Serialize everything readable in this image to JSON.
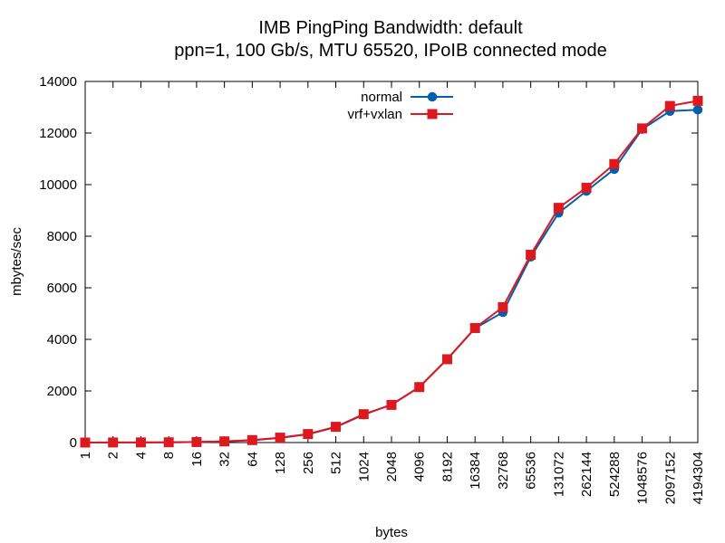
{
  "chart_data": {
    "type": "line",
    "title": "IMB PingPing Bandwidth: default",
    "subtitle": "ppn=1, 100 Gb/s, MTU 65520, IPoIB connected mode",
    "xlabel": "bytes",
    "ylabel": "mbytes/sec",
    "ylim": [
      0,
      14000
    ],
    "yticks": [
      0,
      2000,
      4000,
      6000,
      8000,
      10000,
      12000,
      14000
    ],
    "grid": false,
    "legend_position": "top-center",
    "categories": [
      "1",
      "2",
      "4",
      "8",
      "16",
      "32",
      "64",
      "128",
      "256",
      "512",
      "1024",
      "2048",
      "4096",
      "8192",
      "16384",
      "32768",
      "65536",
      "131072",
      "262144",
      "524288",
      "1048576",
      "2097152",
      "4194304"
    ],
    "series": [
      {
        "name": "normal",
        "color": "#0060ad",
        "marker": "circle",
        "values": [
          0,
          3,
          5,
          10,
          20,
          45,
          90,
          180,
          320,
          600,
          1080,
          1470,
          2150,
          3230,
          4430,
          5050,
          7200,
          8900,
          9750,
          10600,
          12150,
          12850,
          12900
        ]
      },
      {
        "name": "vrf+vxlan",
        "color": "#dd181f",
        "marker": "square",
        "values": [
          0,
          3,
          5,
          10,
          20,
          45,
          95,
          190,
          330,
          610,
          1100,
          1460,
          2150,
          3230,
          4440,
          5250,
          7280,
          9100,
          9880,
          10800,
          12180,
          13050,
          13250
        ]
      }
    ]
  }
}
